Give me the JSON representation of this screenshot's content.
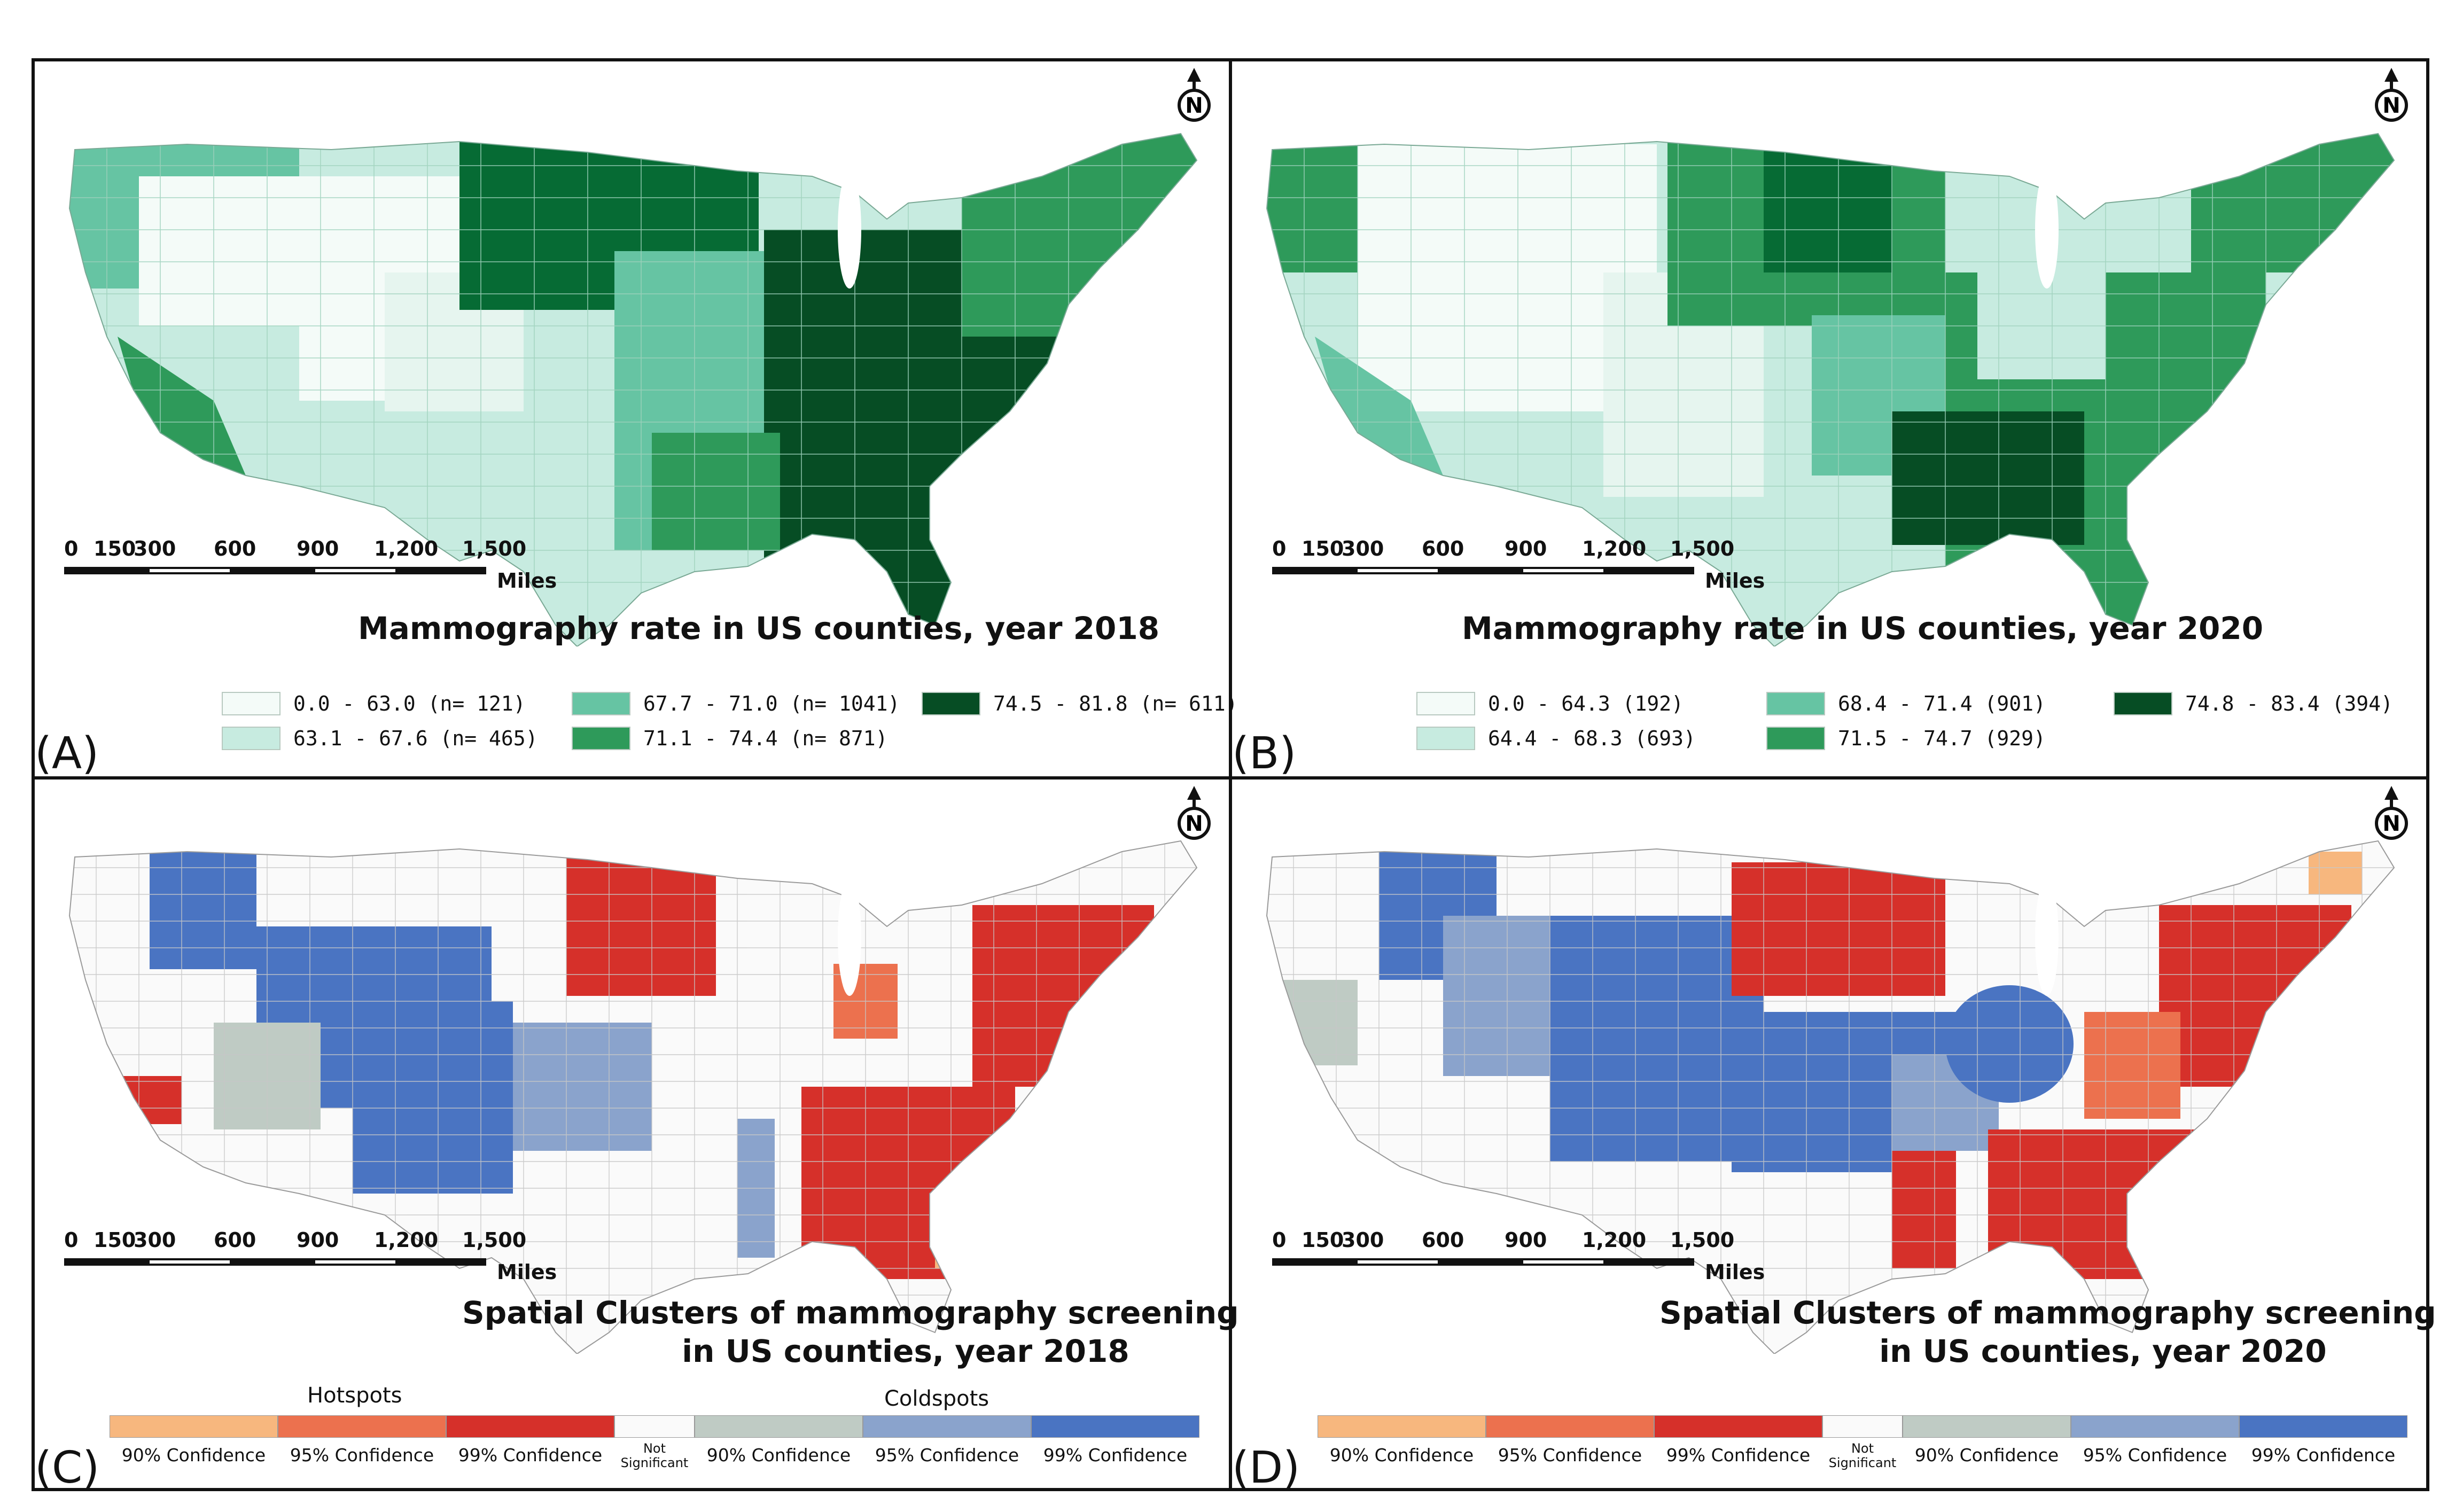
{
  "north_symbol": "N",
  "scale": {
    "ticks": [
      "0",
      "150",
      "300",
      "600",
      "900",
      "1,200",
      "1,500"
    ],
    "units": "Miles"
  },
  "panels": [
    {
      "label": "(A)",
      "title": "Mammography rate in US counties, year 2018",
      "legend": [
        {
          "label": "0.0 - 63.0 (n= 121)",
          "color": "#f4fbf8"
        },
        {
          "label": "63.1 - 67.6 (n= 465)",
          "color": "#c7ebe0"
        },
        {
          "label": "67.7 - 71.0 (n= 1041)",
          "color": "#66c4a3"
        },
        {
          "label": "71.1 - 74.4 (n= 871)",
          "color": "#2e9a5a"
        },
        {
          "label": "74.5 - 81.8 (n= 611)",
          "color": "#064d24"
        }
      ]
    },
    {
      "label": "(B)",
      "title": "Mammography rate in US counties, year 2020",
      "legend": [
        {
          "label": "0.0 - 64.3 (192)",
          "color": "#f4fbf8"
        },
        {
          "label": "64.4 - 68.3 (693)",
          "color": "#c7ebe0"
        },
        {
          "label": "68.4 - 71.4 (901)",
          "color": "#66c4a3"
        },
        {
          "label": "71.5 - 74.7 (929)",
          "color": "#2e9a5a"
        },
        {
          "label": "74.8 - 83.4 (394)",
          "color": "#064d24"
        }
      ]
    },
    {
      "label": "(C)",
      "title_line1": "Spatial Clusters of mammography screening",
      "title_line2": "in US counties, year 2018",
      "hotspots_label": "Hotspots",
      "coldspots_label": "Coldspots",
      "legend": [
        {
          "label": "90% Confidence",
          "color": "#f7b77e"
        },
        {
          "label": "95% Confidence",
          "color": "#ec714e"
        },
        {
          "label": "99% Confidence",
          "color": "#d6302a"
        },
        {
          "label": "Not Significant",
          "color": "#fafafa"
        },
        {
          "label": "90% Confidence",
          "color": "#bfcbc4"
        },
        {
          "label": "95% Confidence",
          "color": "#8aa3cc"
        },
        {
          "label": "99% Confidence",
          "color": "#4a74c2"
        }
      ]
    },
    {
      "label": "(D)",
      "title_line1": "Spatial Clusters of mammography screening",
      "title_line2": "in US counties, year 2020",
      "legend": [
        {
          "label": "90% Confidence",
          "color": "#f7b77e"
        },
        {
          "label": "95% Confidence",
          "color": "#ec714e"
        },
        {
          "label": "99% Confidence",
          "color": "#d6302a"
        },
        {
          "label": "Not Significant",
          "color": "#fafafa"
        },
        {
          "label": "90% Confidence",
          "color": "#bfcbc4"
        },
        {
          "label": "95% Confidence",
          "color": "#8aa3cc"
        },
        {
          "label": "99% Confidence",
          "color": "#4a74c2"
        }
      ]
    }
  ]
}
